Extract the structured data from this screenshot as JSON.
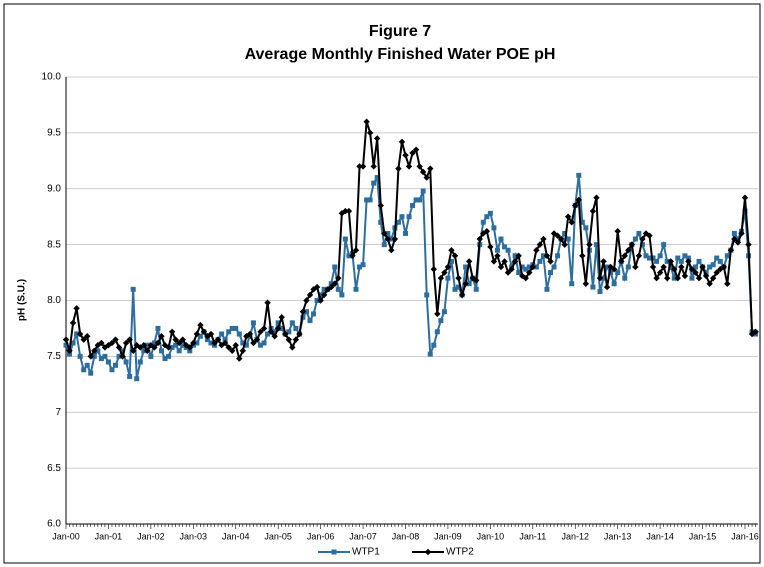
{
  "chart_data": {
    "type": "line",
    "title": "Figure 7",
    "subtitle": "Average Monthly Finished Water POE pH",
    "y_label": "pH (S.U.)",
    "categories": [
      "Jan-00",
      null,
      null,
      null,
      null,
      null,
      null,
      null,
      null,
      null,
      null,
      null,
      "Jan-01",
      null,
      null,
      null,
      null,
      null,
      null,
      null,
      null,
      null,
      null,
      null,
      "Jan-02",
      null,
      null,
      null,
      null,
      null,
      null,
      null,
      null,
      null,
      null,
      null,
      "Jan-03",
      null,
      null,
      null,
      null,
      null,
      null,
      null,
      null,
      null,
      null,
      null,
      "Jan-04",
      null,
      null,
      null,
      null,
      null,
      null,
      null,
      null,
      null,
      null,
      null,
      "Jan-05",
      null,
      null,
      null,
      null,
      null,
      null,
      null,
      null,
      null,
      null,
      null,
      "Jan-06",
      null,
      null,
      null,
      null,
      null,
      null,
      null,
      null,
      null,
      null,
      null,
      "Jan-07",
      null,
      null,
      null,
      null,
      null,
      null,
      null,
      null,
      null,
      null,
      null,
      "Jan-08",
      null,
      null,
      null,
      null,
      null,
      null,
      null,
      null,
      null,
      null,
      null,
      "Jan-09",
      null,
      null,
      null,
      null,
      null,
      null,
      null,
      null,
      null,
      null,
      null,
      "Jan-10",
      null,
      null,
      null,
      null,
      null,
      null,
      null,
      null,
      null,
      null,
      null,
      "Jan-11",
      null,
      null,
      null,
      null,
      null,
      null,
      null,
      null,
      null,
      null,
      null,
      "Jan-12",
      null,
      null,
      null,
      null,
      null,
      null,
      null,
      null,
      null,
      null,
      null,
      "Jan-13",
      null,
      null,
      null,
      null,
      null,
      null,
      null,
      null,
      null,
      null,
      null,
      "Jan-14",
      null,
      null,
      null,
      null,
      null,
      null,
      null,
      null,
      null,
      null,
      null,
      "Jan-15",
      null,
      null,
      null,
      null,
      null,
      null,
      null,
      null,
      null,
      null,
      null,
      "Jan-16",
      null,
      null,
      null
    ],
    "series": [
      {
        "name": "WTP1",
        "color": "#2e6e9e",
        "marker": "square",
        "values": [
          7.6,
          7.52,
          7.62,
          7.7,
          7.5,
          7.38,
          7.42,
          7.35,
          7.5,
          7.55,
          7.48,
          7.5,
          7.45,
          7.38,
          7.42,
          7.5,
          7.55,
          7.45,
          7.32,
          8.1,
          7.3,
          7.45,
          7.55,
          7.6,
          7.5,
          7.62,
          7.75,
          7.55,
          7.48,
          7.5,
          7.58,
          7.6,
          7.55,
          7.6,
          7.58,
          7.55,
          7.6,
          7.62,
          7.68,
          7.72,
          7.65,
          7.62,
          7.6,
          7.65,
          7.7,
          7.65,
          7.72,
          7.75,
          7.75,
          7.7,
          7.62,
          7.6,
          7.68,
          7.8,
          7.65,
          7.6,
          7.62,
          7.7,
          7.75,
          7.72,
          7.8,
          7.75,
          7.7,
          7.72,
          7.8,
          7.75,
          7.7,
          7.85,
          7.9,
          7.82,
          7.88,
          8.0,
          8.05,
          8.1,
          8.1,
          8.15,
          8.3,
          8.1,
          8.05,
          8.55,
          8.4,
          8.42,
          8.1,
          8.3,
          8.32,
          8.9,
          8.9,
          9.05,
          9.1,
          8.7,
          8.5,
          8.6,
          8.55,
          8.65,
          8.7,
          8.75,
          8.6,
          8.75,
          8.85,
          8.9,
          8.9,
          8.98,
          8.05,
          7.52,
          7.6,
          7.72,
          7.82,
          7.9,
          8.2,
          8.35,
          8.1,
          8.12,
          8.05,
          8.3,
          8.15,
          8.2,
          8.1,
          8.5,
          8.7,
          8.75,
          8.78,
          8.65,
          8.45,
          8.55,
          8.48,
          8.45,
          8.3,
          8.4,
          8.25,
          8.3,
          8.28,
          8.3,
          8.32,
          8.3,
          8.35,
          8.4,
          8.1,
          8.25,
          8.3,
          8.4,
          8.55,
          8.6,
          8.55,
          8.15,
          8.85,
          9.12,
          8.7,
          8.65,
          8.45,
          8.12,
          8.5,
          8.08,
          8.2,
          8.3,
          8.25,
          8.15,
          8.25,
          8.35,
          8.2,
          8.3,
          8.5,
          8.55,
          8.6,
          8.5,
          8.4,
          8.38,
          8.38,
          8.35,
          8.4,
          8.5,
          8.35,
          8.3,
          8.2,
          8.38,
          8.35,
          8.4,
          8.38,
          8.2,
          8.3,
          8.35,
          8.3,
          8.25,
          8.3,
          8.32,
          8.38,
          8.35,
          8.3,
          8.4,
          8.45,
          8.6,
          8.55,
          8.62,
          8.8,
          8.4,
          7.72,
          7.7
        ]
      },
      {
        "name": "WTP2",
        "color": "#000000",
        "marker": "diamond",
        "values": [
          7.65,
          7.55,
          7.8,
          7.93,
          7.7,
          7.65,
          7.68,
          7.5,
          7.55,
          7.6,
          7.62,
          7.58,
          7.6,
          7.62,
          7.65,
          7.58,
          7.5,
          7.62,
          7.65,
          7.55,
          7.6,
          7.58,
          7.6,
          7.55,
          7.6,
          7.58,
          7.62,
          7.68,
          7.6,
          7.58,
          7.72,
          7.65,
          7.62,
          7.65,
          7.6,
          7.58,
          7.62,
          7.7,
          7.78,
          7.72,
          7.68,
          7.7,
          7.62,
          7.65,
          7.6,
          7.62,
          7.58,
          7.55,
          7.6,
          7.48,
          7.55,
          7.68,
          7.7,
          7.62,
          7.65,
          7.72,
          7.75,
          7.98,
          7.72,
          7.68,
          7.75,
          7.85,
          7.7,
          7.65,
          7.58,
          7.65,
          7.7,
          7.9,
          8.0,
          8.05,
          8.1,
          8.12,
          8.0,
          8.05,
          8.1,
          8.12,
          8.15,
          8.2,
          8.78,
          8.8,
          8.8,
          8.4,
          8.45,
          9.2,
          9.2,
          9.6,
          9.5,
          9.2,
          9.45,
          8.85,
          8.6,
          8.55,
          8.45,
          8.55,
          9.18,
          9.42,
          9.3,
          9.2,
          9.32,
          9.35,
          9.2,
          9.15,
          9.1,
          9.18,
          8.28,
          7.88,
          8.2,
          8.25,
          8.3,
          8.45,
          8.4,
          8.2,
          8.05,
          8.15,
          8.35,
          8.2,
          8.18,
          8.55,
          8.6,
          8.62,
          8.48,
          8.35,
          8.4,
          8.3,
          8.35,
          8.25,
          8.28,
          8.35,
          8.4,
          8.22,
          8.2,
          8.25,
          8.3,
          8.45,
          8.5,
          8.55,
          8.4,
          8.35,
          8.6,
          8.58,
          8.55,
          8.5,
          8.75,
          8.7,
          8.85,
          8.9,
          8.4,
          8.15,
          8.5,
          8.8,
          8.92,
          8.2,
          8.35,
          8.12,
          8.3,
          8.28,
          8.62,
          8.35,
          8.4,
          8.45,
          8.5,
          8.3,
          8.4,
          8.55,
          8.6,
          8.58,
          8.3,
          8.2,
          8.25,
          8.3,
          8.2,
          8.35,
          8.28,
          8.2,
          8.3,
          8.22,
          8.35,
          8.28,
          8.25,
          8.2,
          8.3,
          8.22,
          8.15,
          8.2,
          8.25,
          8.28,
          8.3,
          8.15,
          8.45,
          8.55,
          8.52,
          8.6,
          8.92,
          8.5,
          7.7,
          7.72
        ]
      }
    ],
    "ylim": [
      6.0,
      10.0
    ],
    "yticks": [
      {
        "value": 6,
        "label": "6.0"
      },
      6.5,
      7.0,
      7.5,
      {
        "value": 8,
        "label": "8.0"
      },
      8.5,
      {
        "value": 9,
        "label": "9.0"
      },
      9.5,
      {
        "value": 10,
        "label": "10.0"
      }
    ],
    "grid": true,
    "legend": "bottom"
  }
}
